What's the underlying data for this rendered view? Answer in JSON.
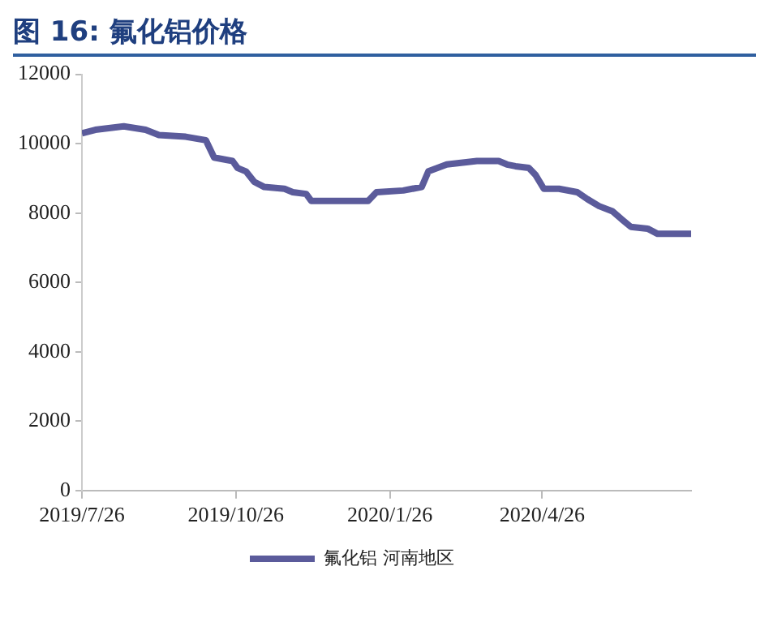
{
  "chart_data": {
    "type": "line",
    "title": "图 16: 氟化铝价格",
    "x": [
      "2019-07-26",
      "2019-08-03",
      "2019-08-20",
      "2019-09-02",
      "2019-09-10",
      "2019-09-26",
      "2019-10-08",
      "2019-10-13",
      "2019-10-24",
      "2019-10-27",
      "2019-11-01",
      "2019-11-06",
      "2019-11-12",
      "2019-11-24",
      "2019-11-29",
      "2019-12-07",
      "2019-12-10",
      "2020-01-13",
      "2020-01-18",
      "2020-02-03",
      "2020-02-14",
      "2020-02-18",
      "2020-02-29",
      "2020-03-18",
      "2020-03-31",
      "2020-04-05",
      "2020-04-10",
      "2020-04-18",
      "2020-04-22",
      "2020-04-27",
      "2020-05-06",
      "2020-05-17",
      "2020-05-23",
      "2020-05-30",
      "2020-06-07",
      "2020-06-13",
      "2020-06-18",
      "2020-06-28",
      "2020-07-04",
      "2020-07-24"
    ],
    "series": [
      {
        "name": "氟化铝 河南地区",
        "color": "#5b5b9b",
        "values": [
          10300,
          10400,
          10500,
          10400,
          10250,
          10200,
          10100,
          9600,
          9500,
          9300,
          9200,
          8900,
          8750,
          8700,
          8600,
          8550,
          8350,
          8350,
          8600,
          8650,
          8750,
          9200,
          9400,
          9500,
          9500,
          9400,
          9350,
          9300,
          9100,
          8700,
          8700,
          8600,
          8400,
          8200,
          8050,
          7800,
          7600,
          7550,
          7400,
          7400
        ]
      }
    ],
    "xlim": [
      "2019-07-26",
      "2020-07-24"
    ],
    "xticks": [
      {
        "value": "2019-07-26",
        "label": "2019/7/26"
      },
      {
        "value": "2019-10-26",
        "label": "2019/10/26"
      },
      {
        "value": "2020-01-26",
        "label": "2020/1/26"
      },
      {
        "value": "2020-04-26",
        "label": "2020/4/26"
      }
    ],
    "ylim": [
      0,
      12000
    ],
    "yticks": [
      0,
      2000,
      4000,
      6000,
      8000,
      10000,
      12000
    ],
    "grid": false,
    "legend": "bottom",
    "marker": "none",
    "line_style": "solid"
  }
}
